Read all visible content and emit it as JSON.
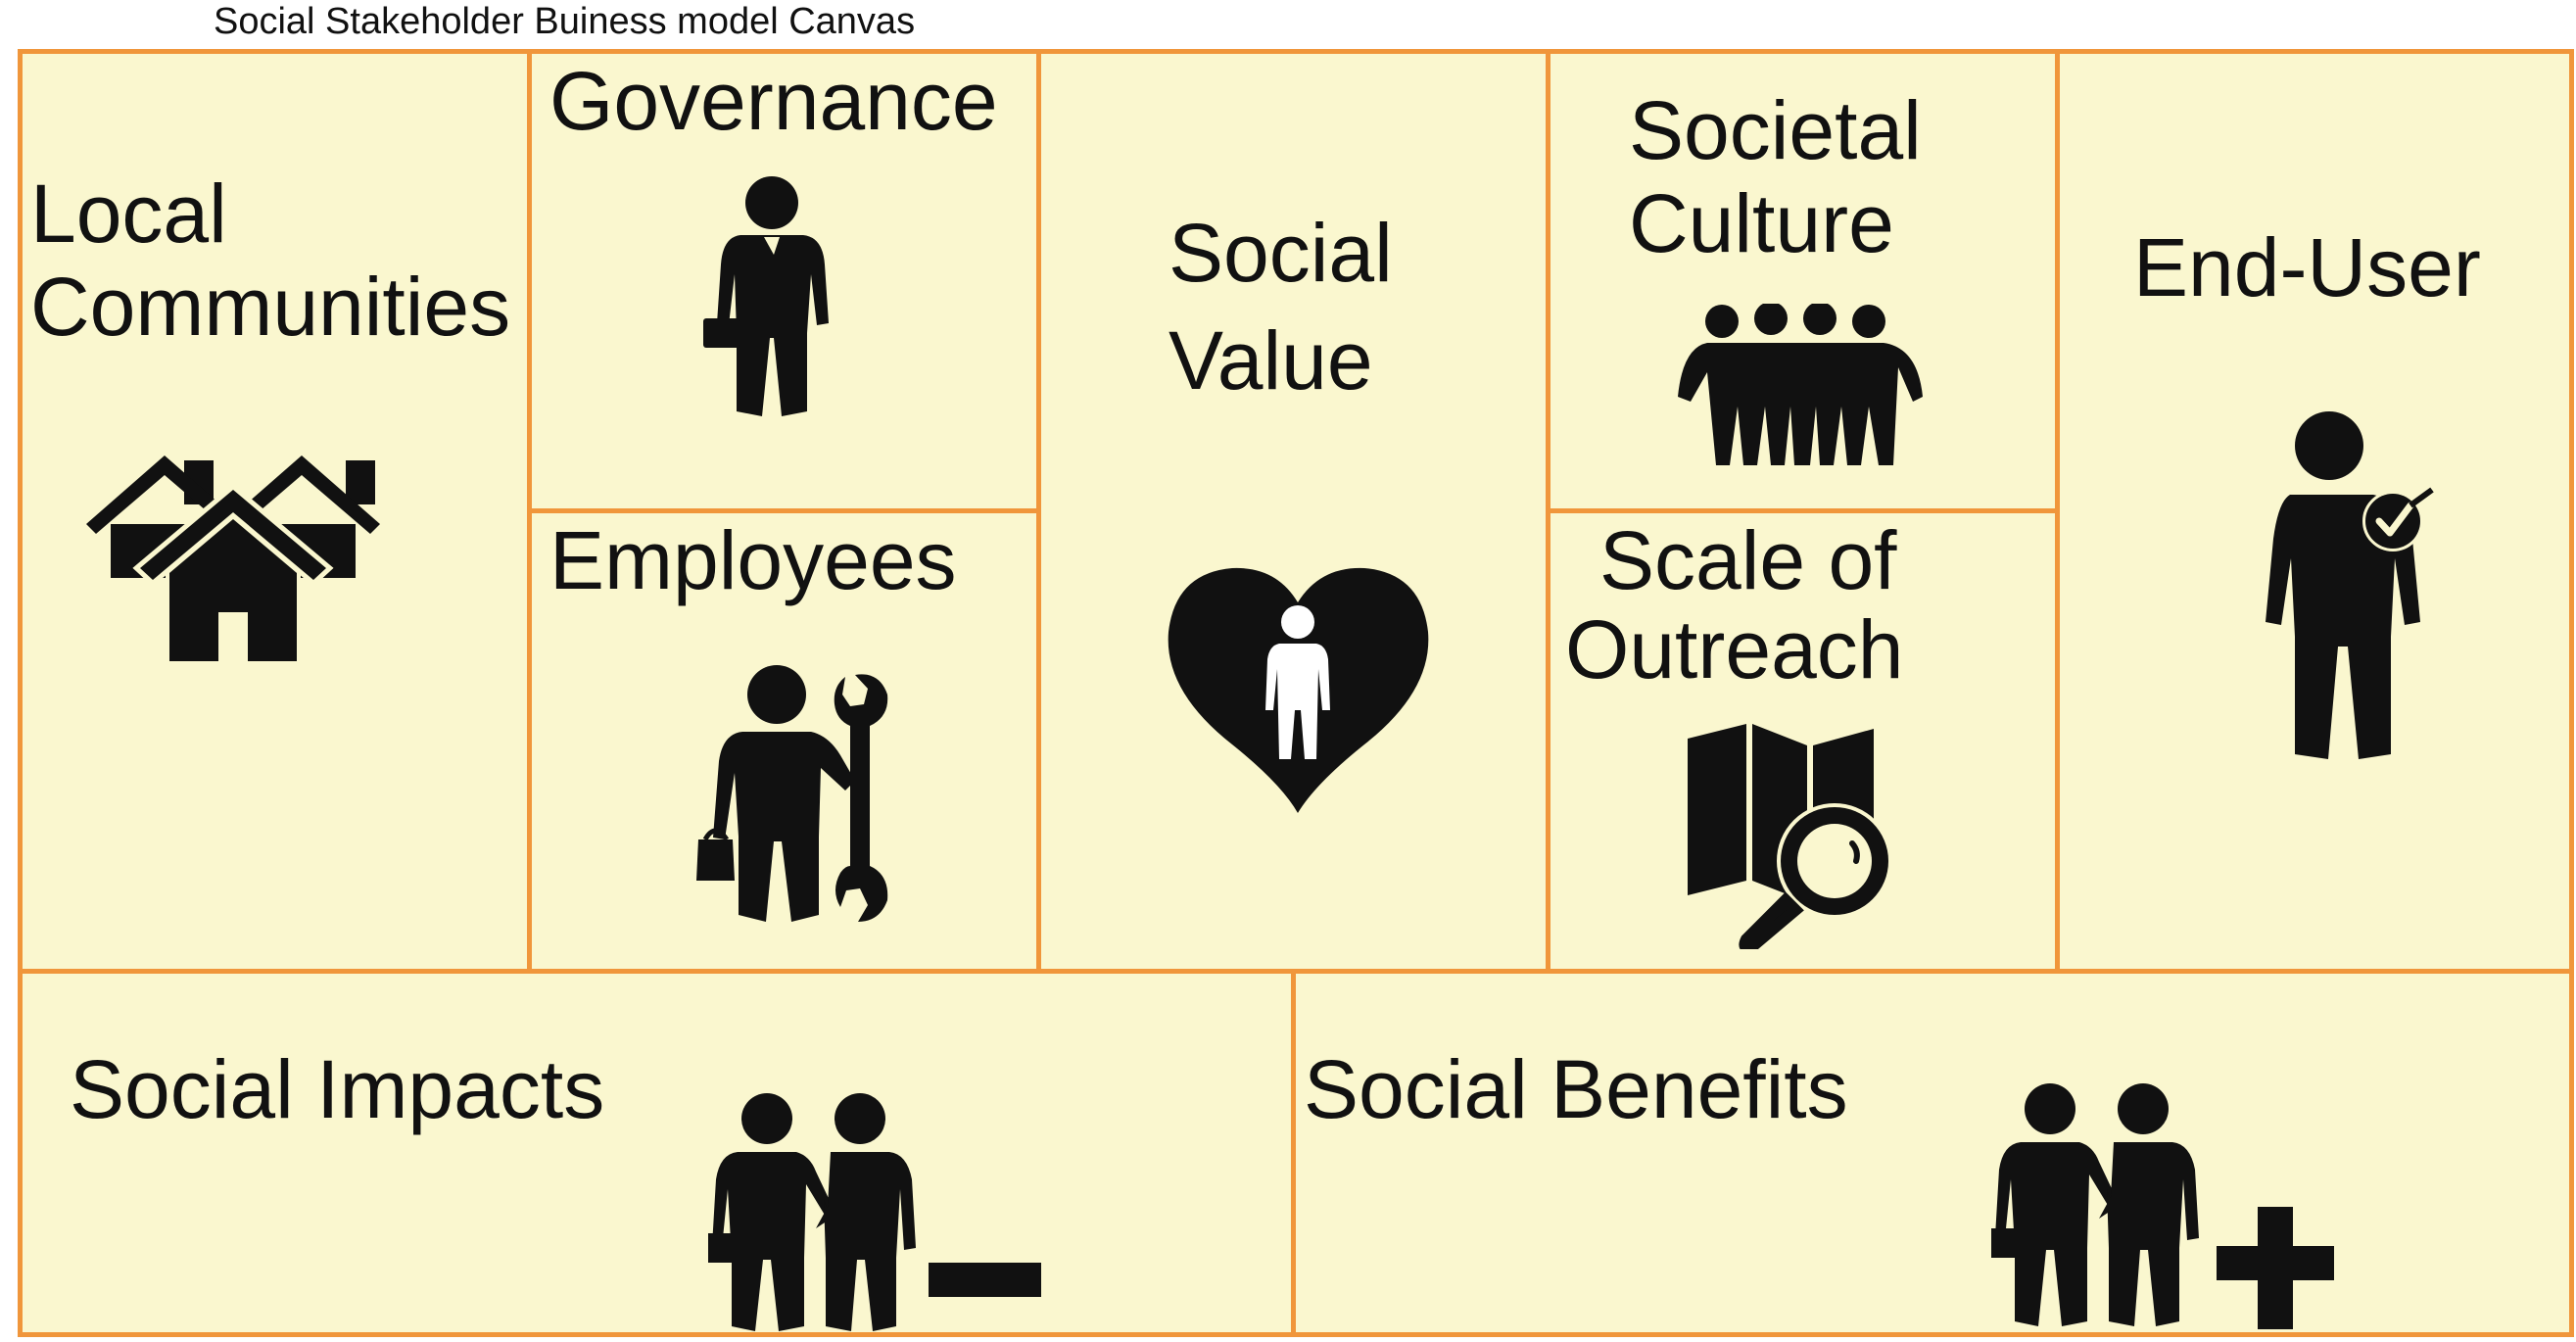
{
  "title": "Social Stakeholder Buiness model Canvas",
  "colors": {
    "border": "#f0963b",
    "fill": "#faf7cf",
    "icon": "#111111"
  },
  "cells": {
    "local_communities": {
      "line1": "Local",
      "line2": "Communities",
      "icon": "houses-icon"
    },
    "governance": {
      "label": "Governance",
      "icon": "businessman-icon"
    },
    "employees": {
      "label": "Employees",
      "icon": "worker-wrench-icon"
    },
    "social_value": {
      "line1": "Social",
      "line2": "Value",
      "icon": "heart-person-icon"
    },
    "societal_culture": {
      "line1": "Societal",
      "line2": "Culture",
      "icon": "group-people-icon"
    },
    "scale_of_outreach": {
      "line1": "Scale of",
      "line2": "Outreach",
      "icon": "map-magnifier-icon"
    },
    "end_user": {
      "label": "End-User",
      "icon": "user-check-icon"
    },
    "social_impacts": {
      "label": "Social Impacts",
      "icon": "handshake-minus-icon"
    },
    "social_benefits": {
      "label": "Social Benefits",
      "icon": "handshake-plus-icon"
    }
  }
}
